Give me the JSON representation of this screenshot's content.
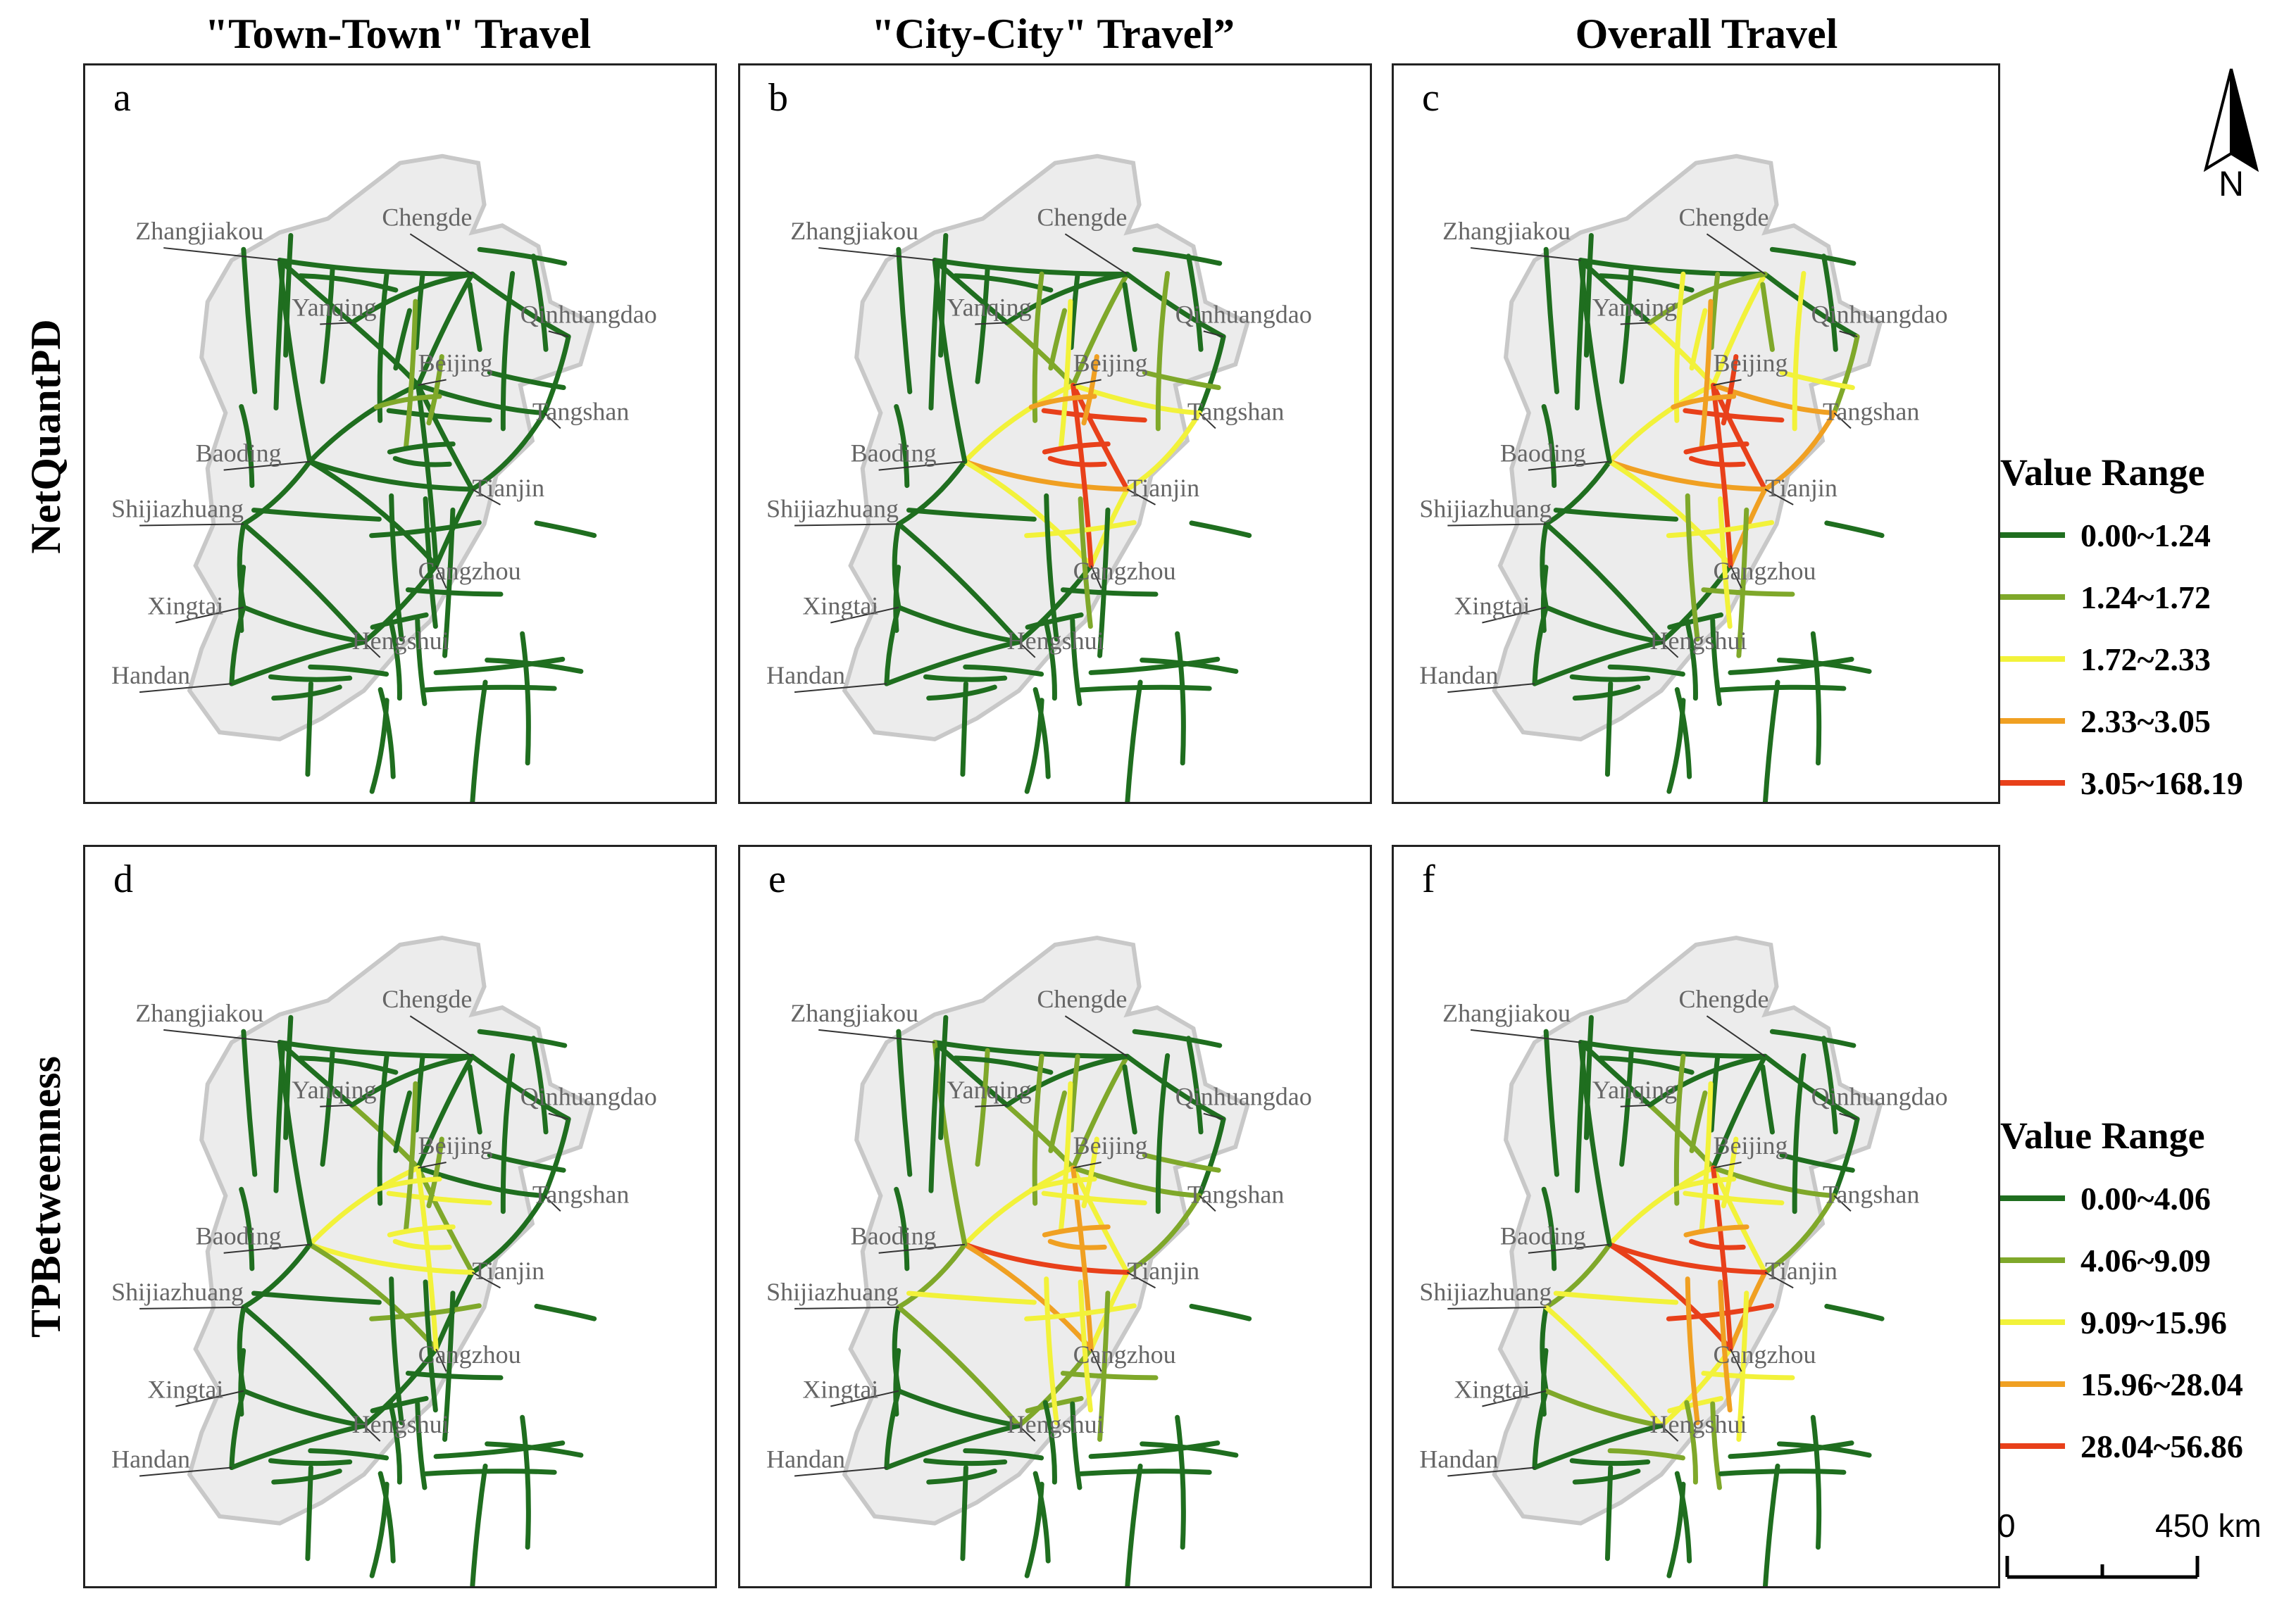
{
  "columns": [
    {
      "title": "\"Town-Town\" Travel"
    },
    {
      "title": "\"City-City\" Travel”"
    },
    {
      "title": "Overall Travel"
    }
  ],
  "rows": [
    {
      "title": "NetQuantPD"
    },
    {
      "title": "TPBetweenness"
    }
  ],
  "panels": [
    {
      "letter": "a"
    },
    {
      "letter": "b"
    },
    {
      "letter": "c"
    },
    {
      "letter": "d"
    },
    {
      "letter": "e"
    },
    {
      "letter": "f"
    }
  ],
  "cities": [
    "Zhangjiakou",
    "Chengde",
    "Yanqing",
    "Qinhuangdao",
    "Beijing",
    "Tangshan",
    "Baoding",
    "Tianjin",
    "Shijiazhuang",
    "Cangzhou",
    "Xingtai",
    "Hengshui",
    "Handan"
  ],
  "legend_top": {
    "title": "Value Range",
    "items": [
      {
        "label": "0.00~1.24",
        "color": "#1f6e1f"
      },
      {
        "label": "1.24~1.72",
        "color": "#7fa82a"
      },
      {
        "label": "1.72~2.33",
        "color": "#f2f23a"
      },
      {
        "label": "2.33~3.05",
        "color": "#f0a022"
      },
      {
        "label": "3.05~168.19",
        "color": "#e8401a"
      }
    ]
  },
  "legend_bottom": {
    "title": "Value Range",
    "items": [
      {
        "label": "0.00~4.06",
        "color": "#1f6e1f"
      },
      {
        "label": "4.06~9.09",
        "color": "#7fa82a"
      },
      {
        "label": "9.09~15.96",
        "color": "#f2f23a"
      },
      {
        "label": "15.96~28.04",
        "color": "#f0a022"
      },
      {
        "label": "28.04~56.86",
        "color": "#e8401a"
      }
    ]
  },
  "north_arrow": {
    "label": "N"
  },
  "scale_bar": {
    "start": "0",
    "end": "450 km"
  },
  "colors": {
    "class1": "#1f6e1f",
    "class2": "#7fa82a",
    "class3": "#f2f23a",
    "class4": "#f0a022",
    "class5": "#e8401a",
    "region_fill": "#ececec",
    "region_border": "#c8c8c8",
    "label_text": "#666666"
  }
}
